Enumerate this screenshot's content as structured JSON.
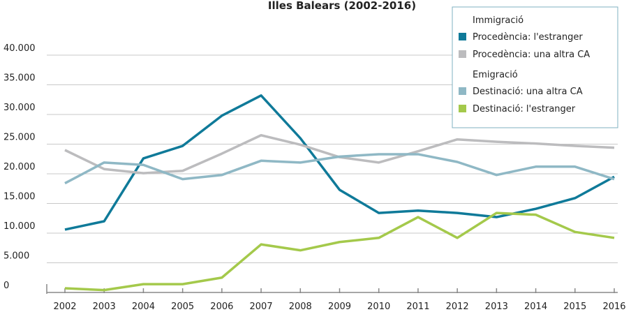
{
  "chart_data": {
    "type": "line",
    "title": "Illes Balears (2002-2016)",
    "categories": [
      "2002",
      "2003",
      "2004",
      "2005",
      "2006",
      "2007",
      "2008",
      "2009",
      "2010",
      "2011",
      "2012",
      "2013",
      "2014",
      "2015",
      "2016"
    ],
    "ylim": [
      0,
      40000
    ],
    "yticks": [
      0,
      {
        "value": 5000,
        "label": "5.000"
      },
      {
        "value": 10000,
        "label": "10.000"
      },
      {
        "value": 15000,
        "label": "15.000"
      },
      {
        "value": 20000,
        "label": "20.000"
      },
      {
        "value": 25000,
        "label": "25.000"
      },
      {
        "value": 30000,
        "label": "30.000"
      },
      {
        "value": 35000,
        "label": "35.000"
      },
      {
        "value": 40000,
        "label": "40.000"
      }
    ],
    "grid": true,
    "legend_position": "upper right",
    "series": [
      {
        "name": "Procedència: l'estranger",
        "group": "Immigració",
        "color": "#0f7a99",
        "values": [
          10600,
          12000,
          22600,
          24700,
          29800,
          33200,
          26000,
          17300,
          13400,
          13800,
          13400,
          12700,
          14100,
          15900,
          19500
        ]
      },
      {
        "name": "Procedència: una altra CA",
        "group": "Immigració",
        "color": "#bcbcbe",
        "values": [
          24000,
          20800,
          20100,
          20500,
          23400,
          26500,
          24900,
          22800,
          21900,
          23800,
          25800,
          25400,
          25100,
          24700,
          24400
        ]
      },
      {
        "name": "Destinació: una altra CA",
        "group": "Emigració",
        "color": "#8fb8c5",
        "values": [
          18400,
          21900,
          21500,
          19100,
          19800,
          22200,
          21900,
          22900,
          23300,
          23300,
          22000,
          19800,
          21200,
          21200,
          19100
        ]
      },
      {
        "name": "Destinació: l'estranger",
        "group": "Emigració",
        "color": "#a4c94b",
        "values": [
          700,
          400,
          1400,
          1400,
          2500,
          8100,
          7100,
          8500,
          9200,
          12700,
          9200,
          13400,
          13100,
          10200,
          9200
        ]
      }
    ]
  }
}
